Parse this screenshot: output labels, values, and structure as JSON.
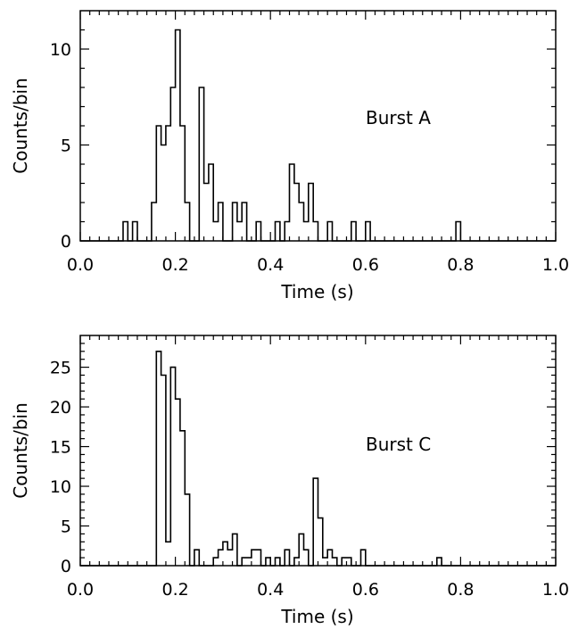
{
  "chart_data": [
    {
      "type": "histogram",
      "annotation": "Burst A",
      "xlabel": "Time (s)",
      "ylabel": "Counts/bin",
      "xlim": [
        0.0,
        1.0
      ],
      "ylim": [
        0,
        12
      ],
      "xticks": [
        "0.0",
        "0.2",
        "0.4",
        "0.6",
        "0.8",
        "1.0"
      ],
      "yticks": [
        "0",
        "5",
        "10"
      ],
      "bin_width": 0.01,
      "bin_start": 0.09,
      "values": [
        1,
        0,
        1,
        0,
        0,
        0,
        2,
        6,
        5,
        6,
        8,
        11,
        6,
        2,
        0,
        0,
        8,
        3,
        4,
        1,
        2,
        0,
        0,
        2,
        1,
        2,
        0,
        0,
        1,
        0,
        0,
        0,
        1,
        0,
        1,
        4,
        3,
        2,
        1,
        3,
        1,
        0,
        0,
        1,
        0,
        0,
        0,
        0,
        1,
        0,
        0,
        1,
        0,
        0,
        0,
        0,
        0,
        0,
        0,
        0,
        0,
        0,
        0,
        0,
        0,
        0,
        0,
        0,
        0,
        0,
        1,
        0
      ]
    },
    {
      "type": "histogram",
      "annotation": "Burst C",
      "xlabel": "Time (s)",
      "ylabel": "Counts/bin",
      "xlim": [
        0.0,
        1.0
      ],
      "ylim": [
        0,
        29
      ],
      "xticks": [
        "0.0",
        "0.2",
        "0.4",
        "0.6",
        "0.8",
        "1.0"
      ],
      "yticks": [
        "0",
        "5",
        "10",
        "15",
        "20",
        "25"
      ],
      "bin_width": 0.01,
      "bin_start": 0.15,
      "values": [
        0,
        27,
        24,
        3,
        25,
        21,
        17,
        9,
        0,
        2,
        0,
        0,
        0,
        1,
        2,
        3,
        2,
        4,
        0,
        1,
        1,
        2,
        2,
        0,
        1,
        0,
        1,
        0,
        2,
        0,
        1,
        4,
        2,
        0,
        11,
        6,
        1,
        2,
        1,
        0,
        1,
        1,
        0,
        0,
        2,
        0,
        0,
        0,
        0,
        0,
        0,
        0,
        0,
        0,
        0,
        0,
        0,
        0,
        0,
        0,
        1,
        0
      ]
    }
  ]
}
